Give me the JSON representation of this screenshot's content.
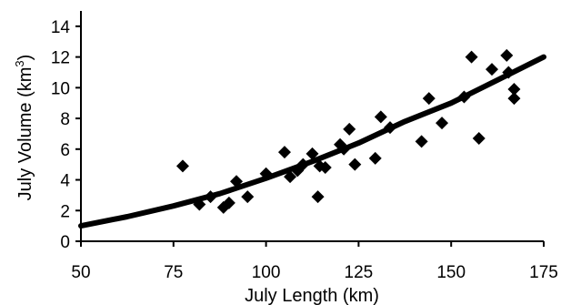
{
  "chart_data": {
    "type": "scatter",
    "title": "",
    "xlabel": "July Length (km)",
    "ylabel_main": "July Volume (km",
    "ylabel_sup": "3",
    "ylabel_close": ")",
    "xlim": [
      50,
      175
    ],
    "ylim": [
      0,
      15
    ],
    "x_ticks": [
      "50",
      "75",
      "100",
      "125",
      "150",
      "175"
    ],
    "y_ticks": [
      "0",
      "2",
      "4",
      "6",
      "8",
      "10",
      "12",
      "14"
    ],
    "grid": false,
    "legend": "none",
    "marker_color": "#000000",
    "series": [
      {
        "marker": "diamond",
        "points": [
          [
            77.5,
            4.9
          ],
          [
            82,
            2.4
          ],
          [
            85,
            2.9
          ],
          [
            88.5,
            2.2
          ],
          [
            90,
            2.5
          ],
          [
            92,
            3.9
          ],
          [
            95,
            2.9
          ],
          [
            100,
            4.4
          ],
          [
            105,
            5.8
          ],
          [
            106.5,
            4.2
          ],
          [
            108.5,
            4.6
          ],
          [
            110,
            5.0
          ],
          [
            112.5,
            5.7
          ],
          [
            114,
            2.9
          ],
          [
            114.5,
            4.9
          ],
          [
            116,
            4.8
          ],
          [
            120,
            6.3
          ],
          [
            121,
            6.0
          ],
          [
            122.5,
            7.3
          ],
          [
            124,
            5.0
          ],
          [
            129.5,
            5.4
          ],
          [
            131,
            8.1
          ],
          [
            133.5,
            7.4
          ],
          [
            142,
            6.5
          ],
          [
            144,
            9.3
          ],
          [
            147.5,
            7.7
          ],
          [
            153.5,
            9.4
          ],
          [
            155.5,
            12.0
          ],
          [
            157.5,
            6.7
          ],
          [
            161,
            11.2
          ],
          [
            165,
            12.1
          ],
          [
            165.5,
            11.0
          ],
          [
            167,
            9.9
          ],
          [
            167,
            9.3
          ]
        ]
      }
    ],
    "fit_curve": {
      "type": "line",
      "points": [
        [
          50,
          1.0
        ],
        [
          62.5,
          1.6
        ],
        [
          75,
          2.3
        ],
        [
          87.5,
          3.1
        ],
        [
          100,
          4.1
        ],
        [
          112.5,
          5.2
        ],
        [
          125,
          6.4
        ],
        [
          137.5,
          7.8
        ],
        [
          150,
          9.0
        ],
        [
          162.5,
          10.5
        ],
        [
          175,
          12.0
        ]
      ]
    }
  }
}
